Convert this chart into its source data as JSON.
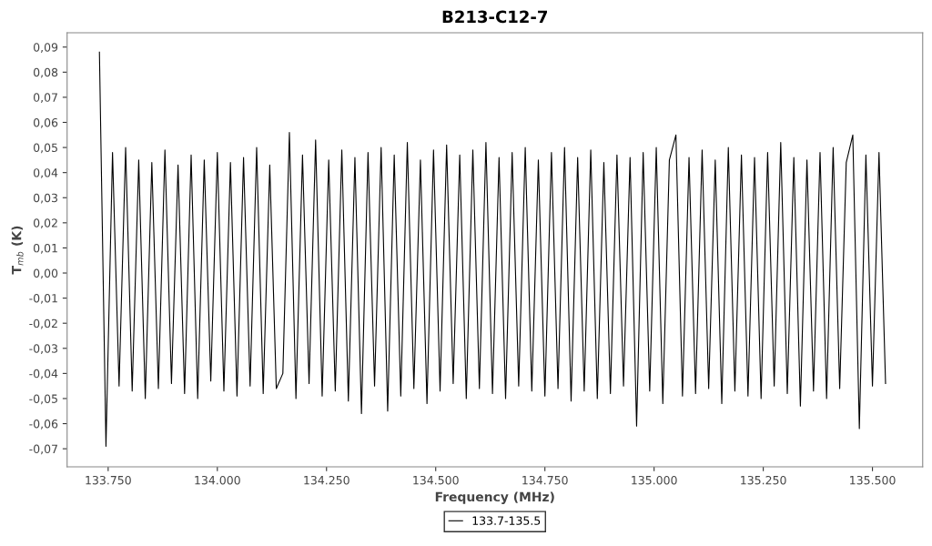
{
  "chart_data": {
    "type": "line",
    "title": "B213-C12-7",
    "xlabel": "Frequency (MHz)",
    "ylabel": "T$_{mb}$ (K)",
    "xlim": [
      133656,
      135615
    ],
    "ylim": [
      -0.0772,
      0.0957
    ],
    "xticks": [
      {
        "value": 133750,
        "label": "133.750"
      },
      {
        "value": 134000,
        "label": "134.000"
      },
      {
        "value": 134250,
        "label": "134.250"
      },
      {
        "value": 134500,
        "label": "134.500"
      },
      {
        "value": 134750,
        "label": "134.750"
      },
      {
        "value": 135000,
        "label": "135.000"
      },
      {
        "value": 135250,
        "label": "135.250"
      },
      {
        "value": 135500,
        "label": "135.500"
      }
    ],
    "yticks": [
      {
        "value": -0.07,
        "label": "-0,07"
      },
      {
        "value": -0.06,
        "label": "-0,06"
      },
      {
        "value": -0.05,
        "label": "-0,05"
      },
      {
        "value": -0.04,
        "label": "-0,04"
      },
      {
        "value": -0.03,
        "label": "-0,03"
      },
      {
        "value": -0.02,
        "label": "-0,02"
      },
      {
        "value": -0.01,
        "label": "-0,01"
      },
      {
        "value": 0.0,
        "label": "0,00"
      },
      {
        "value": 0.01,
        "label": "0,01"
      },
      {
        "value": 0.02,
        "label": "0,02"
      },
      {
        "value": 0.03,
        "label": "0,03"
      },
      {
        "value": 0.04,
        "label": "0,04"
      },
      {
        "value": 0.05,
        "label": "0,05"
      },
      {
        "value": 0.06,
        "label": "0,06"
      },
      {
        "value": 0.07,
        "label": "0,07"
      },
      {
        "value": 0.08,
        "label": "0,08"
      },
      {
        "value": 0.09,
        "label": "0,09"
      }
    ],
    "grid": false,
    "legend": "bottom",
    "marker": "none",
    "line_style": "solid",
    "series": [
      {
        "name": "133.7-135.5",
        "color": "#000000",
        "x": [
          133730,
          133745,
          133760,
          133775,
          133790,
          133805,
          133820,
          133835,
          133850,
          133865,
          133880,
          133895,
          133910,
          133925,
          133940,
          133955,
          133970,
          133985,
          134000,
          134015,
          134030,
          134045,
          134060,
          134075,
          134090,
          134105,
          134120,
          134135,
          134150,
          134165,
          134180,
          134195,
          134210,
          134225,
          134240,
          134255,
          134270,
          134285,
          134300,
          134315,
          134330,
          134345,
          134360,
          134375,
          134390,
          134405,
          134420,
          134435,
          134450,
          134465,
          134480,
          134495,
          134510,
          134525,
          134540,
          134555,
          134570,
          134585,
          134600,
          134615,
          134630,
          134645,
          134660,
          134675,
          134690,
          134705,
          134720,
          134735,
          134750,
          134765,
          134780,
          134795,
          134810,
          134825,
          134840,
          134855,
          134870,
          134885,
          134900,
          134915,
          134930,
          134945,
          134960,
          134975,
          134990,
          135005,
          135020,
          135035,
          135050,
          135065,
          135080,
          135095,
          135110,
          135125,
          135140,
          135155,
          135170,
          135185,
          135200,
          135215,
          135230,
          135245,
          135260,
          135275,
          135290,
          135305,
          135320,
          135335,
          135350,
          135365,
          135380,
          135395,
          135410,
          135425,
          135440,
          135455,
          135470,
          135485,
          135500,
          135515,
          135530
        ],
        "values": [
          0.088,
          -0.069,
          0.048,
          -0.045,
          0.05,
          -0.047,
          0.045,
          -0.05,
          0.044,
          -0.046,
          0.049,
          -0.044,
          0.043,
          -0.048,
          0.047,
          -0.05,
          0.045,
          -0.043,
          0.048,
          -0.047,
          0.044,
          -0.049,
          0.046,
          -0.045,
          0.05,
          -0.048,
          0.043,
          -0.046,
          -0.04,
          0.056,
          -0.05,
          0.047,
          -0.044,
          0.053,
          -0.049,
          0.045,
          -0.047,
          0.049,
          -0.051,
          0.046,
          -0.056,
          0.048,
          -0.045,
          0.05,
          -0.055,
          0.047,
          -0.049,
          0.052,
          -0.046,
          0.045,
          -0.052,
          0.049,
          -0.047,
          0.051,
          -0.044,
          0.047,
          -0.05,
          0.049,
          -0.046,
          0.052,
          -0.048,
          0.046,
          -0.05,
          0.048,
          -0.045,
          0.05,
          -0.047,
          0.045,
          -0.049,
          0.048,
          -0.046,
          0.05,
          -0.051,
          0.046,
          -0.047,
          0.049,
          -0.05,
          0.044,
          -0.048,
          0.047,
          -0.045,
          0.046,
          -0.061,
          0.048,
          -0.047,
          0.05,
          -0.052,
          0.045,
          0.055,
          -0.049,
          0.046,
          -0.048,
          0.049,
          -0.046,
          0.045,
          -0.052,
          0.05,
          -0.047,
          0.047,
          -0.049,
          0.046,
          -0.05,
          0.048,
          -0.045,
          0.052,
          -0.048,
          0.046,
          -0.053,
          0.045,
          -0.047,
          0.048,
          -0.05,
          0.05,
          -0.046,
          0.044,
          0.055,
          -0.062,
          0.047,
          -0.045,
          0.048,
          -0.044
        ]
      }
    ]
  }
}
